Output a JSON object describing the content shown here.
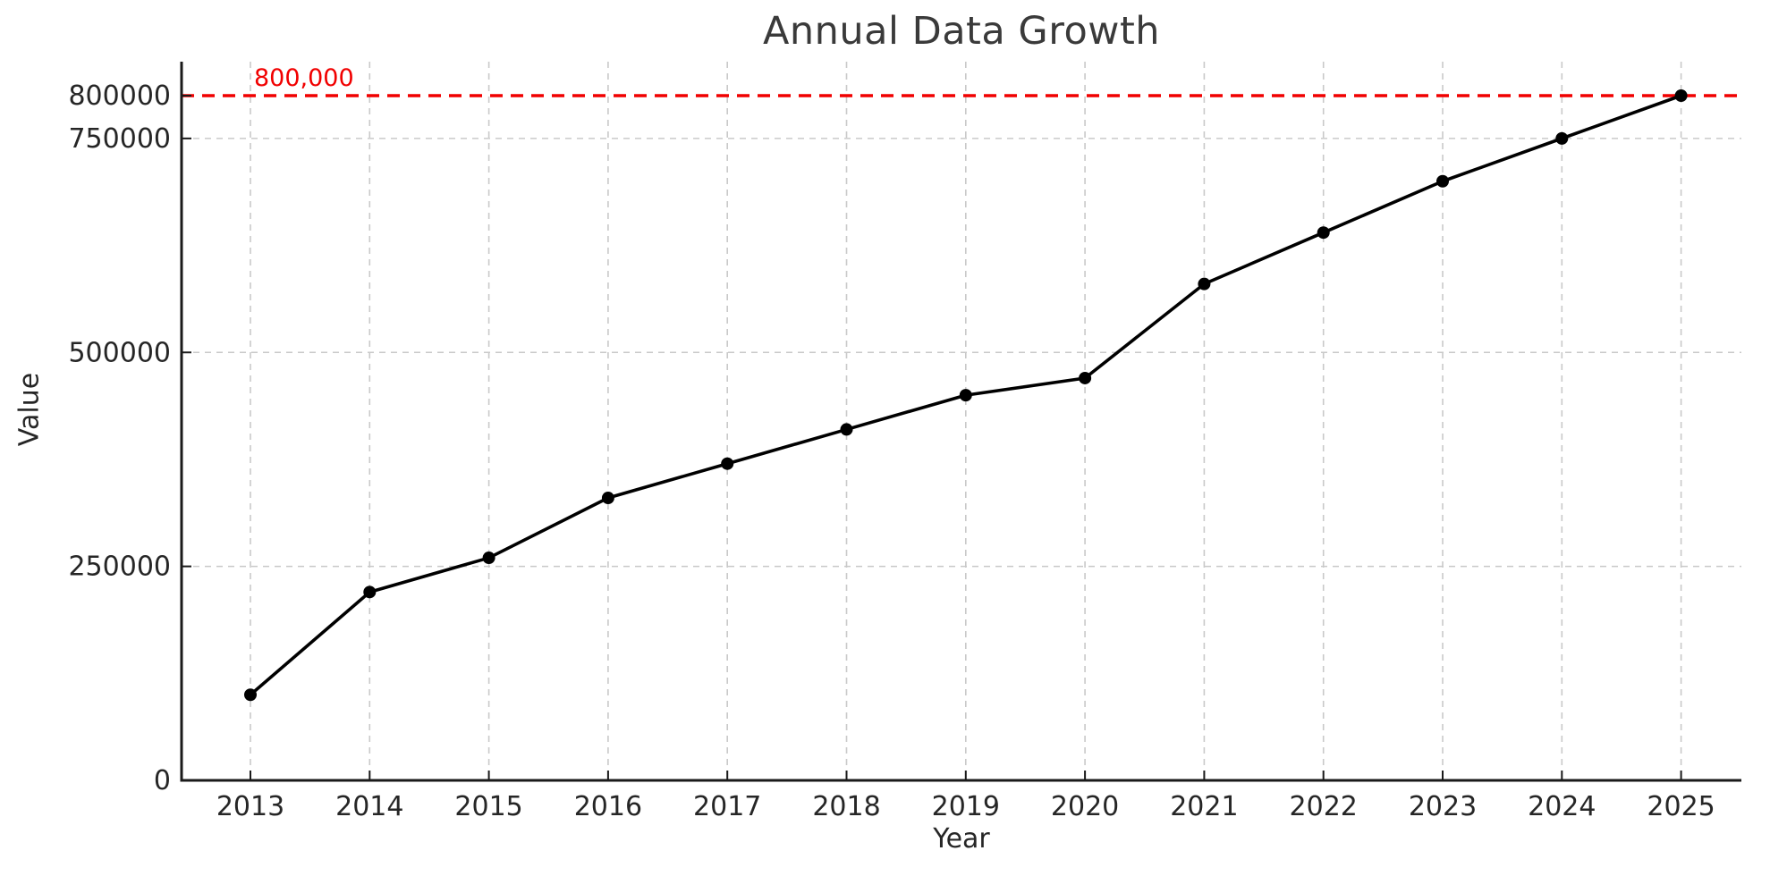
{
  "chart_data": {
    "type": "line",
    "title": "Annual Data Growth",
    "xlabel": "Year",
    "ylabel": "Value",
    "x": [
      2013,
      2014,
      2015,
      2016,
      2017,
      2018,
      2019,
      2020,
      2021,
      2022,
      2023,
      2024,
      2025
    ],
    "x_tick_labels": [
      "2013",
      "2014",
      "2015",
      "2016",
      "2017",
      "2018",
      "2019",
      "2020",
      "2021",
      "2022",
      "2023",
      "2024",
      "2025"
    ],
    "series": [
      {
        "name": "Value",
        "values": [
          100000,
          220000,
          260000,
          330000,
          370000,
          410000,
          450000,
          470000,
          580000,
          640000,
          700000,
          750000,
          800000
        ]
      }
    ],
    "y_ticks": [
      {
        "value": 0,
        "label": "0"
      },
      {
        "value": 250000,
        "label": "250000"
      },
      {
        "value": 500000,
        "label": "500000"
      },
      {
        "value": 750000,
        "label": "750000"
      },
      {
        "value": 800000,
        "label": "800000"
      }
    ],
    "y_gridline_values": [
      250000,
      500000,
      750000
    ],
    "reference_line": {
      "value": 800000,
      "label": "800,000"
    },
    "ylim": [
      0,
      840000
    ],
    "xlim": [
      2012.42,
      2025.58
    ],
    "grid": true,
    "legend_position": "none",
    "marker": "circle",
    "line_style": "solid",
    "colors": {
      "line": "#000000",
      "marker": "#000000",
      "reference": "#f10000",
      "grid": "#c9c9c9",
      "spine": "#1a1a1a",
      "text": "#262626",
      "title": "#3a3a3a"
    }
  }
}
